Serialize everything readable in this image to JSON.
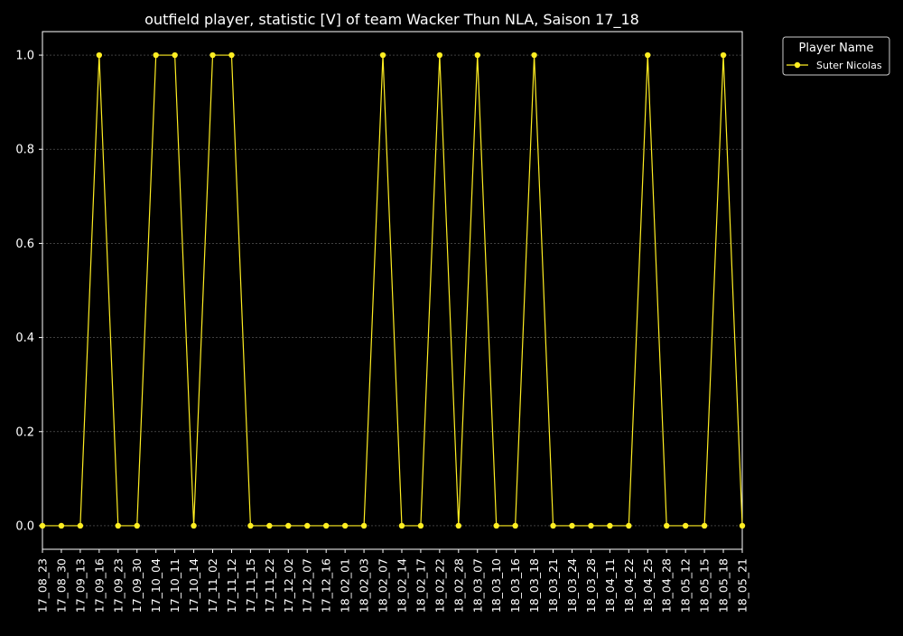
{
  "chart_data": {
    "type": "line",
    "title": "outfield player, statistic [V] of team Wacker Thun NLA, Saison 17_18",
    "xlabel": "",
    "ylabel": "",
    "x": [
      "17_08_23",
      "17_08_30",
      "17_09_13",
      "17_09_16",
      "17_09_23",
      "17_09_30",
      "17_10_04",
      "17_10_11",
      "17_10_14",
      "17_11_02",
      "17_11_12",
      "17_11_15",
      "17_11_22",
      "17_12_02",
      "17_12_07",
      "17_12_16",
      "18_02_01",
      "18_02_03",
      "18_02_07",
      "18_02_14",
      "18_02_17",
      "18_02_22",
      "18_02_28",
      "18_03_07",
      "18_03_10",
      "18_03_16",
      "18_03_18",
      "18_03_21",
      "18_03_24",
      "18_03_28",
      "18_04_11",
      "18_04_22",
      "18_04_25",
      "18_04_28",
      "18_05_12",
      "18_05_15",
      "18_05_18",
      "18_05_21"
    ],
    "series": [
      {
        "name": "Suter Nicolas",
        "color": "#ffee22",
        "values": [
          0,
          0,
          0,
          1,
          0,
          0,
          1,
          1,
          0,
          1,
          1,
          0,
          0,
          0,
          0,
          0,
          0,
          0,
          1,
          0,
          0,
          1,
          0,
          1,
          0,
          0,
          1,
          0,
          0,
          0,
          0,
          0,
          1,
          0,
          0,
          0,
          1,
          0
        ]
      }
    ],
    "yticks": [
      "0.0",
      "0.2",
      "0.4",
      "0.6",
      "0.8",
      "1.0"
    ],
    "ylim": [
      -0.05,
      1.05
    ],
    "grid": true,
    "legend": {
      "title": "Player Name",
      "placement": "outside-top-right"
    },
    "colors": {
      "background": "#000000",
      "axes": "#ffffff",
      "grid": "#666666",
      "line": "#ffee22"
    }
  }
}
